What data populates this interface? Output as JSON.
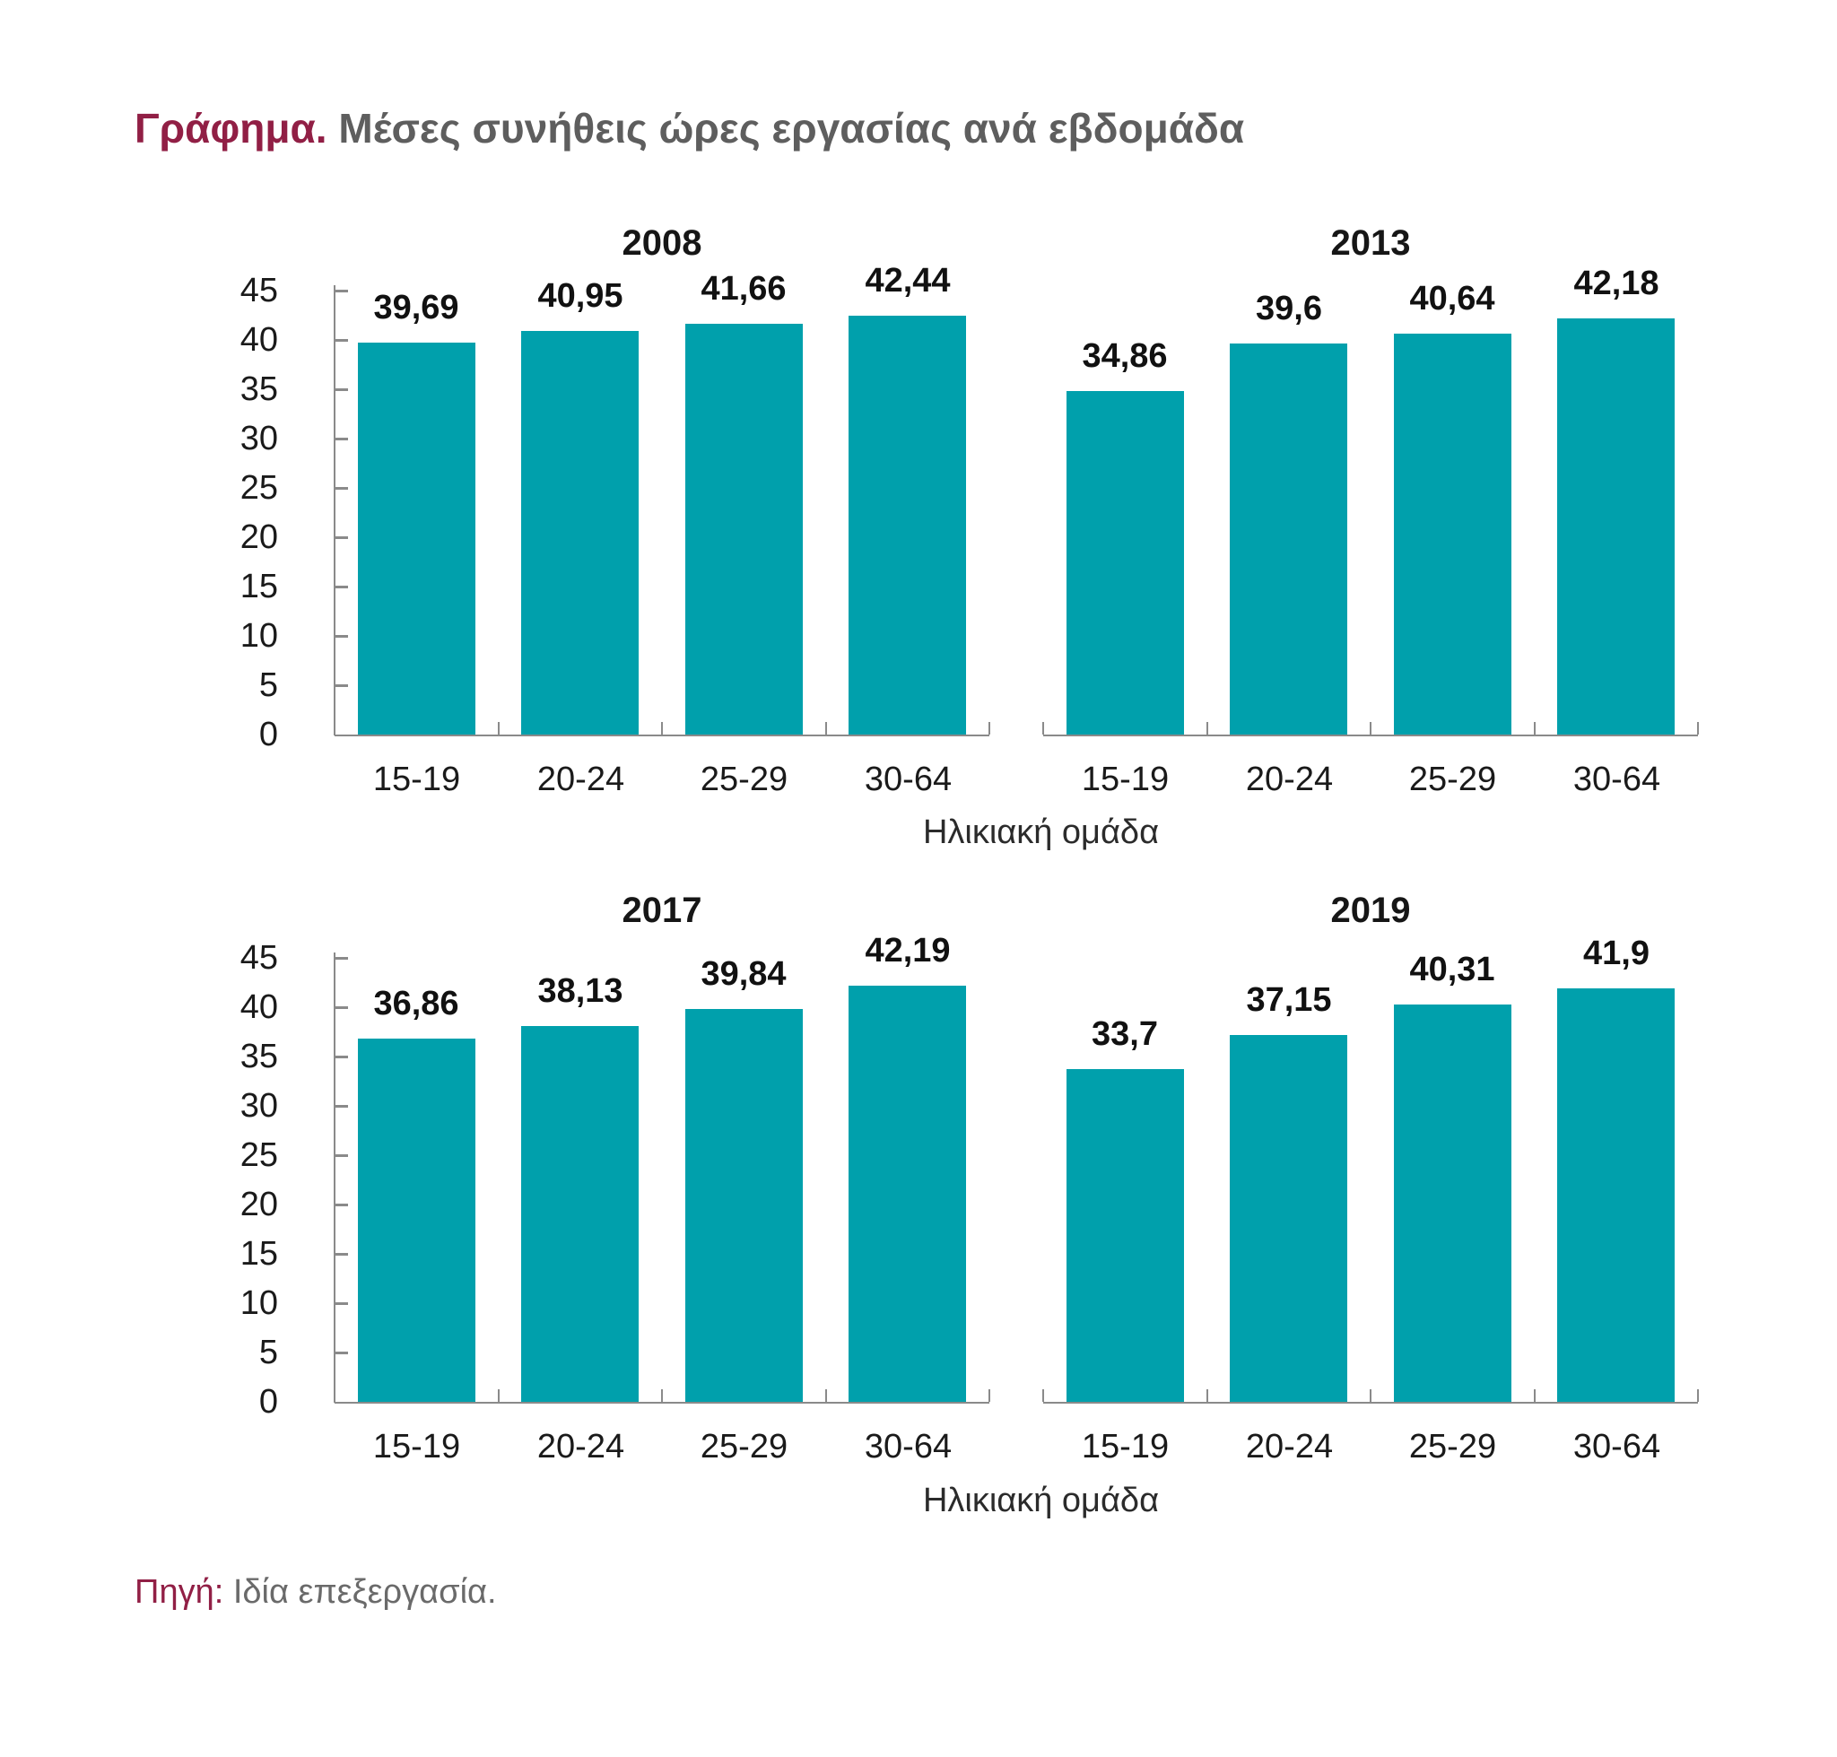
{
  "figure_title": {
    "prefix": "Γράφημα.",
    "rest": "Μέσες συνήθεις ώρες εργασίας ανά εβδομάδα"
  },
  "source": {
    "prefix": "Πηγή:",
    "rest": "Ιδία επεξεργασία."
  },
  "x_axis_title": "Ηλικιακή ομάδα",
  "colors": {
    "bar": "#00A0AC",
    "accent_maroon": "#911F45",
    "title_gray": "#5E5E5E",
    "source_gray": "#6A6A6A",
    "axis_gray": "#8A8A8A",
    "label_black": "#1A1A1A"
  },
  "chart_data": [
    {
      "type": "bar",
      "title": "2008",
      "categories": [
        "15-19",
        "20-24",
        "25-29",
        "30-64"
      ],
      "values": [
        39.69,
        40.95,
        41.66,
        42.44
      ],
      "value_labels": [
        "39,69",
        "40,95",
        "41,66",
        "42,44"
      ],
      "xlabel": "Ηλικιακή ομάδα",
      "ylabel": "",
      "ylim": [
        0,
        45
      ],
      "yticks": [
        0,
        5,
        10,
        15,
        20,
        25,
        30,
        35,
        40,
        45
      ],
      "grid": false,
      "legend": false
    },
    {
      "type": "bar",
      "title": "2013",
      "categories": [
        "15-19",
        "20-24",
        "25-29",
        "30-64"
      ],
      "values": [
        34.86,
        39.6,
        40.64,
        42.18
      ],
      "value_labels": [
        "34,86",
        "39,6",
        "40,64",
        "42,18"
      ],
      "xlabel": "Ηλικιακή ομάδα",
      "ylabel": "",
      "ylim": [
        0,
        45
      ],
      "yticks": [
        0,
        5,
        10,
        15,
        20,
        25,
        30,
        35,
        40,
        45
      ],
      "grid": false,
      "legend": false
    },
    {
      "type": "bar",
      "title": "2017",
      "categories": [
        "15-19",
        "20-24",
        "25-29",
        "30-64"
      ],
      "values": [
        36.86,
        38.13,
        39.84,
        42.19
      ],
      "value_labels": [
        "36,86",
        "38,13",
        "39,84",
        "42,19"
      ],
      "xlabel": "Ηλικιακή ομάδα",
      "ylabel": "",
      "ylim": [
        0,
        45
      ],
      "yticks": [
        0,
        5,
        10,
        15,
        20,
        25,
        30,
        35,
        40,
        45
      ],
      "grid": false,
      "legend": false
    },
    {
      "type": "bar",
      "title": "2019",
      "categories": [
        "15-19",
        "20-24",
        "25-29",
        "30-64"
      ],
      "values": [
        33.7,
        37.15,
        40.31,
        41.9
      ],
      "value_labels": [
        "33,7",
        "37,15",
        "40,31",
        "41,9"
      ],
      "xlabel": "Ηλικιακή ομάδα",
      "ylabel": "",
      "ylim": [
        0,
        45
      ],
      "yticks": [
        0,
        5,
        10,
        15,
        20,
        25,
        30,
        35,
        40,
        45
      ],
      "grid": false,
      "legend": false
    }
  ]
}
